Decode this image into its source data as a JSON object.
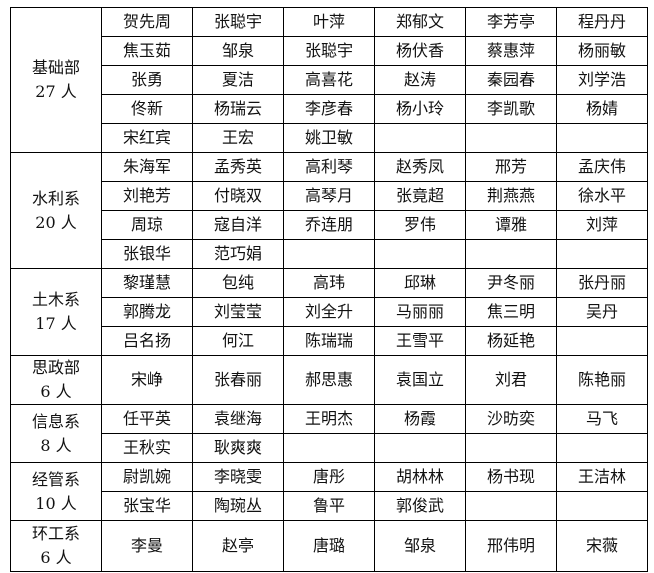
{
  "departments": [
    {
      "name": "基础部",
      "count": "27 人",
      "members": [
        "贺先周",
        "张聪宇",
        "叶萍",
        "郑郁文",
        "李芳亭",
        "程丹丹",
        "焦玉茹",
        "邹泉",
        "张聪宇",
        "杨伏香",
        "蔡惠萍",
        "杨丽敏",
        "张勇",
        "夏洁",
        "高喜花",
        "赵涛",
        "秦园春",
        "刘学浩",
        "佟新",
        "杨瑞云",
        "李彦春",
        "杨小玲",
        "李凯歌",
        "杨婧",
        "宋红宾",
        "王宏",
        "姚卫敏"
      ]
    },
    {
      "name": "水利系",
      "count": "20 人",
      "members": [
        "朱海军",
        "孟秀英",
        "高利琴",
        "赵秀凤",
        "邢芳",
        "孟庆伟",
        "刘艳芳",
        "付晓双",
        "高琴月",
        "张竟超",
        "荆燕燕",
        "徐水平",
        "周琼",
        "寇自洋",
        "乔连朋",
        "罗伟",
        "谭雅",
        "刘萍",
        "张银华",
        "范巧娟"
      ]
    },
    {
      "name": "土木系",
      "count": "17 人",
      "members": [
        "黎瑾慧",
        "包纯",
        "高玮",
        "邱琳",
        "尹冬丽",
        "张丹丽",
        "郭腾龙",
        "刘莹莹",
        "刘全升",
        "马丽丽",
        "焦三明",
        "吴丹",
        "吕名扬",
        "何江",
        "陈瑞瑞",
        "王雪平",
        "杨延艳"
      ]
    },
    {
      "name": "思政部",
      "count": "6 人",
      "members": [
        "宋峥",
        "张春丽",
        "郝思惠",
        "袁国立",
        "刘君",
        "陈艳丽"
      ]
    },
    {
      "name": "信息系",
      "count": "8 人",
      "members": [
        "任平英",
        "袁继海",
        "王明杰",
        "杨霞",
        "沙昉奕",
        "马飞",
        "王秋实",
        "耿爽爽"
      ]
    },
    {
      "name": "经管系",
      "count": "10 人",
      "members": [
        "尉凯婉",
        "李晓雯",
        "唐彤",
        "胡林林",
        "杨书现",
        "王洁林",
        "张宝华",
        "陶琬丛",
        "鲁平",
        "郭俊武"
      ]
    },
    {
      "name": "环工系",
      "count": "6 人",
      "members": [
        "李曼",
        "赵亭",
        "唐璐",
        "邹泉",
        "邢伟明",
        "宋薇"
      ]
    }
  ]
}
